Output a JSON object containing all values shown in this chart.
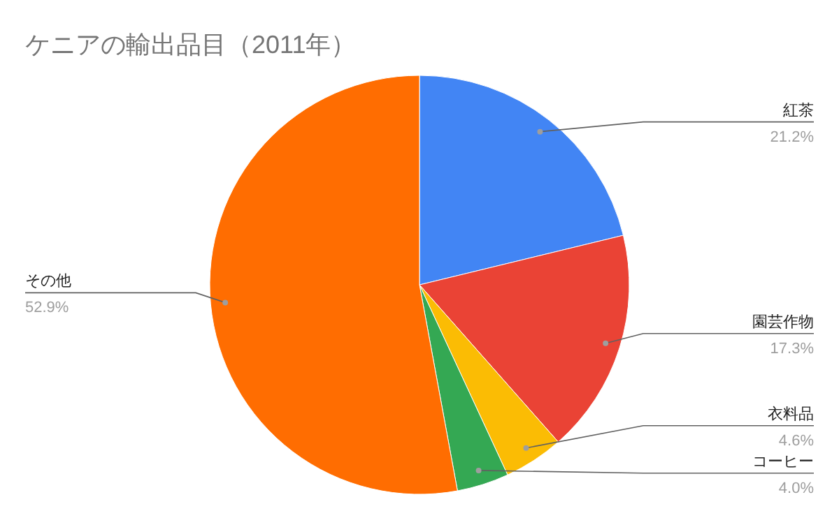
{
  "chart_data": {
    "type": "pie",
    "title": "ケニアの輸出品目（2011年）",
    "categories": [
      "紅茶",
      "園芸作物",
      "衣料品",
      "コーヒー",
      "その他"
    ],
    "values": [
      21.2,
      17.3,
      4.6,
      4.0,
      52.9
    ],
    "colors": [
      "#4285f4",
      "#ea4335",
      "#fbbc04",
      "#34a853",
      "#ff6d01"
    ],
    "value_labels": [
      "21.2%",
      "17.3%",
      "4.6%",
      "4.0%",
      "52.9%"
    ]
  }
}
